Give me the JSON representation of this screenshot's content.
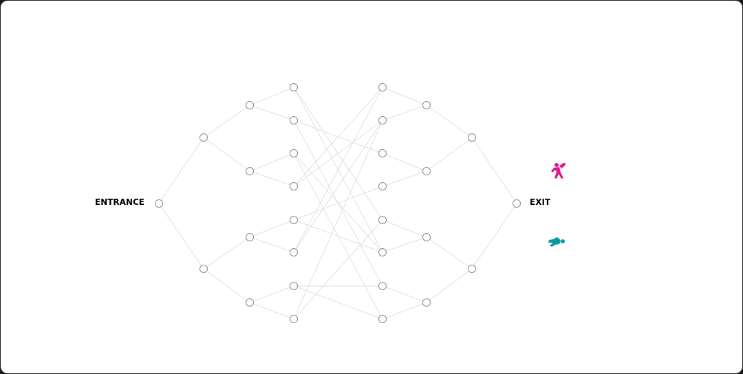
{
  "labels": {
    "entrance": "ENTRANCE",
    "exit": "EXIT"
  },
  "colors": {
    "edge": "#e0e0e0",
    "node": "#8a8a8a",
    "runner": "#e0168c",
    "fallen": "#0a9aa0"
  },
  "icons": {
    "runner": "person-running-icon",
    "fallen": "person-fallen-icon"
  },
  "graph": {
    "left_edges": [
      [
        "E",
        "A0"
      ],
      [
        "E",
        "A1"
      ],
      [
        "A0",
        "B0"
      ],
      [
        "A0",
        "B1"
      ],
      [
        "A1",
        "B2"
      ],
      [
        "A1",
        "B3"
      ],
      [
        "B0",
        "L0"
      ],
      [
        "B0",
        "L1"
      ],
      [
        "B1",
        "L2"
      ],
      [
        "B1",
        "L3"
      ],
      [
        "B2",
        "L4"
      ],
      [
        "B2",
        "L5"
      ],
      [
        "B3",
        "L6"
      ],
      [
        "B3",
        "L7"
      ]
    ],
    "cross_edges": [
      [
        0,
        4
      ],
      [
        0,
        5
      ],
      [
        1,
        2
      ],
      [
        1,
        6
      ],
      [
        2,
        5
      ],
      [
        2,
        7
      ],
      [
        3,
        0
      ],
      [
        3,
        1
      ],
      [
        4,
        3
      ],
      [
        4,
        5
      ],
      [
        5,
        0
      ],
      [
        5,
        1
      ],
      [
        6,
        6
      ],
      [
        6,
        7
      ],
      [
        7,
        1
      ],
      [
        7,
        4
      ]
    ],
    "right_edges": [
      [
        "R0",
        "C0"
      ],
      [
        "R1",
        "C0"
      ],
      [
        "R2",
        "C1"
      ],
      [
        "R3",
        "C1"
      ],
      [
        "R4",
        "C2"
      ],
      [
        "R5",
        "C2"
      ],
      [
        "R6",
        "C3"
      ],
      [
        "R7",
        "C3"
      ],
      [
        "C0",
        "D0"
      ],
      [
        "C1",
        "D0"
      ],
      [
        "C2",
        "D1"
      ],
      [
        "C3",
        "D1"
      ],
      [
        "D0",
        "X"
      ],
      [
        "D1",
        "X"
      ]
    ]
  }
}
